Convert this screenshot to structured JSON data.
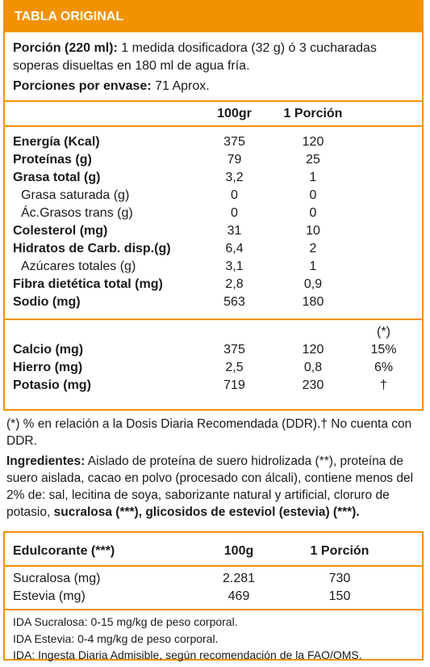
{
  "header": {
    "title": "TABLA ORIGINAL"
  },
  "portion": {
    "label": "Porción (220 ml):",
    "text": "1 medida dosificadora (32 g) ó 3 cucharadas soperas disueltas en 180 ml de agua fría."
  },
  "servings": {
    "label": "Porciones por envase:",
    "text": "71 Aprox."
  },
  "table": {
    "columns": [
      "100gr",
      "1 Porción"
    ],
    "rows": [
      {
        "name": "Energía (Kcal)",
        "values": [
          "375",
          "120"
        ],
        "sub": false
      },
      {
        "name": "Proteínas (g)",
        "values": [
          "79",
          "25"
        ],
        "sub": false
      },
      {
        "name": "Grasa total (g)",
        "values": [
          "3,2",
          "1"
        ],
        "sub": false
      },
      {
        "name": "Grasa saturada (g)",
        "values": [
          "0",
          "0"
        ],
        "sub": true
      },
      {
        "name": "Ác.Grasos trans (g)",
        "values": [
          "0",
          "0"
        ],
        "sub": true
      },
      {
        "name": "Colesterol (mg)",
        "values": [
          "31",
          "10"
        ],
        "sub": false
      },
      {
        "name": "Hidratos de Carb. disp.(g)",
        "values": [
          "6,4",
          "2"
        ],
        "sub": false
      },
      {
        "name": "Azúcares totales (g)",
        "values": [
          "3,1",
          "1"
        ],
        "sub": true
      },
      {
        "name": "Fibra dietética total (mg)",
        "values": [
          "2,8",
          "0,9"
        ],
        "sub": false
      },
      {
        "name": "Sodio (mg)",
        "values": [
          "563",
          "180"
        ],
        "sub": false
      }
    ]
  },
  "minerals": {
    "ddr_header": "(*)",
    "rows": [
      {
        "name": "Calcio (mg)",
        "values": [
          "375",
          "120",
          "15%"
        ]
      },
      {
        "name": "Hierro (mg)",
        "values": [
          "2,5",
          "0,8",
          "6%"
        ]
      },
      {
        "name": "Potasio (mg)",
        "values": [
          "719",
          "230",
          "†"
        ]
      }
    ]
  },
  "footnote": "(*) % en relación a la Dosis Diaria Recomendada (DDR).† No cuenta con DDR.",
  "ingredients": [
    {
      "text": "Ingredientes:",
      "bold": true
    },
    {
      "text": "Aislado de proteína de suero hidrolizada (**), proteína de suero aislada, cacao en polvo (procesado con álcali), contiene menos del 2% de: sal, lecitina de soya, saborizante natural y artificial, cloruro de potasio,",
      "bold": false
    },
    {
      "text": "sucralosa (***),",
      "bold": true
    },
    {
      "text": "glicosidos de esteviol (estevia) (***).",
      "bold": true
    }
  ],
  "sweetener": {
    "columns": [
      "Edulcorante (***)",
      "100g",
      "1 Porción"
    ],
    "rows": [
      [
        "Sucralosa (mg)",
        "2.281",
        "730"
      ],
      [
        "Estevia (mg)",
        "469",
        "150"
      ]
    ],
    "notes": [
      "IDA Sucralosa: 0-15 mg/kg de peso corporal.",
      "IDA Estevia: 0-4 mg/kg de peso corporal.",
      "IDA: Ingesta Diaria Admisible, según recomendación de la FAO/OMS."
    ]
  }
}
